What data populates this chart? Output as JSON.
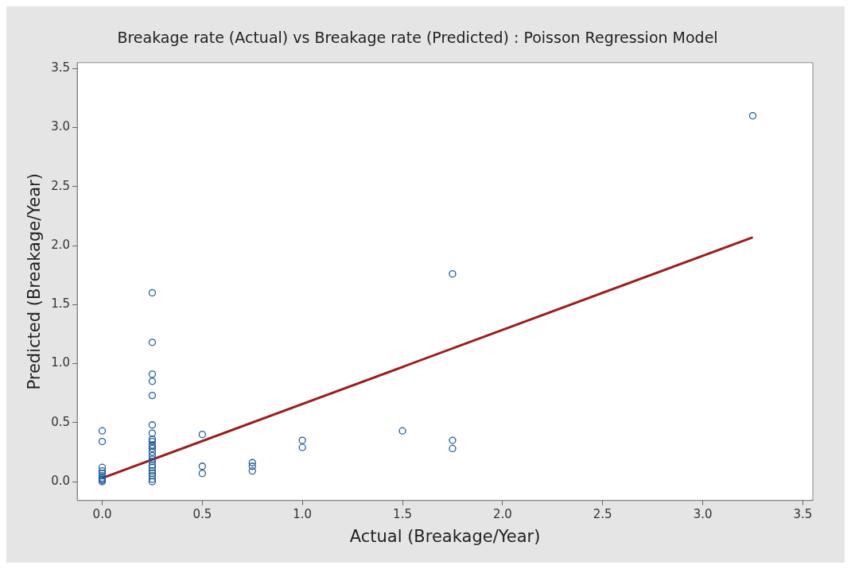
{
  "chart_data": {
    "type": "scatter",
    "title": "Breakage rate (Actual) vs Breakage rate (Predicted) : Poisson Regression Model",
    "xlabel": "Actual (Breakage/Year)",
    "ylabel": "Predicted (Breakage/Year)",
    "xlim": [
      -0.125,
      3.55
    ],
    "ylim": [
      -0.16,
      3.55
    ],
    "xticks": [
      {
        "value": 0,
        "label": "0.0"
      },
      0.5,
      {
        "value": 1,
        "label": "1.0"
      },
      1.5,
      {
        "value": 2,
        "label": "2.0"
      },
      2.5,
      {
        "value": 3,
        "label": "3.0"
      },
      3.5
    ],
    "yticks": [
      {
        "value": 0,
        "label": "0.0"
      },
      0.5,
      {
        "value": 1,
        "label": "1.0"
      },
      1.5,
      {
        "value": 2,
        "label": "2.0"
      },
      2.5,
      {
        "value": 3,
        "label": "3.0"
      },
      3.5
    ],
    "grid": false,
    "legend": false,
    "series": [
      {
        "marker": "circle",
        "color": "#1f5b99",
        "x": [
          0,
          0,
          0,
          0,
          0,
          0,
          0,
          0,
          0,
          0,
          0.25,
          0.25,
          0.25,
          0.25,
          0.25,
          0.25,
          0.25,
          0.25,
          0.25,
          0.25,
          0.25,
          0.25,
          0.25,
          0.25,
          0.25,
          0.25,
          0.25,
          0.25,
          0.25,
          0.25,
          0.25,
          0.25,
          0.25,
          0.5,
          0.5,
          0.5,
          0.75,
          0.75,
          0.75,
          1,
          1,
          1.5,
          1.75,
          1.75,
          1.75,
          3.25
        ],
        "values": [
          0.43,
          0.34,
          0.12,
          0.09,
          0.07,
          0.05,
          0.03,
          0.02,
          0.01,
          0,
          1.6,
          1.18,
          0.91,
          0.85,
          0.73,
          0.48,
          0.41,
          0.36,
          0.34,
          0.31,
          0.28,
          0.25,
          0.22,
          0.19,
          0.17,
          0.14,
          0.12,
          0.09,
          0.07,
          0.05,
          0.02,
          0,
          0.3,
          0.4,
          0.13,
          0.07,
          0.16,
          0.13,
          0.09,
          0.35,
          0.29,
          0.43,
          1.76,
          0.35,
          0.28,
          3.1
        ]
      },
      {
        "type": "line",
        "marker": "none",
        "color": "#9b1c1c",
        "line_style": "solid",
        "x": [
          0,
          3.25
        ],
        "values": [
          0.03,
          2.07
        ]
      }
    ]
  }
}
